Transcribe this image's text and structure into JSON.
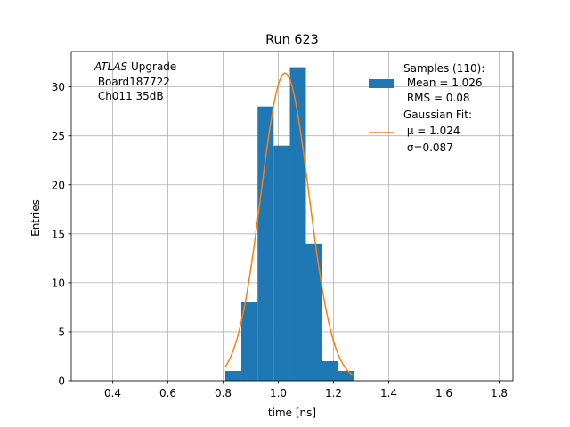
{
  "chart_data": {
    "type": "bar",
    "title": "Run 623",
    "xlabel": "time [ns]",
    "ylabel": "Entries",
    "xlim": [
      0.25,
      1.85
    ],
    "ylim": [
      0,
      33.6
    ],
    "xticks": [
      0.4,
      0.6,
      0.8,
      1.0,
      1.2,
      1.4,
      1.6,
      1.8
    ],
    "xtick_labels": [
      "0.4",
      "0.6",
      "0.8",
      "1.0",
      "1.2",
      "1.4",
      "1.6",
      "1.8"
    ],
    "yticks": [
      0,
      5,
      10,
      15,
      20,
      25,
      30
    ],
    "ytick_labels": [
      "0",
      "5",
      "10",
      "15",
      "20",
      "25",
      "30"
    ],
    "grid": true,
    "legend_position": "top-right",
    "series": [
      {
        "kind": "histogram",
        "color": "#1f77b4",
        "bins": [
          {
            "x0": 0.808,
            "x1": 0.866,
            "count": 1
          },
          {
            "x0": 0.866,
            "x1": 0.925,
            "count": 8
          },
          {
            "x0": 0.925,
            "x1": 0.983,
            "count": 28
          },
          {
            "x0": 0.983,
            "x1": 1.042,
            "count": 24
          },
          {
            "x0": 1.042,
            "x1": 1.1,
            "count": 32
          },
          {
            "x0": 1.1,
            "x1": 1.159,
            "count": 14
          },
          {
            "x0": 1.159,
            "x1": 1.217,
            "count": 2
          },
          {
            "x0": 1.217,
            "x1": 1.276,
            "count": 1
          }
        ],
        "legend_lines": [
          "Samples (110):",
          " Mean = 1.026",
          " RMS = 0.08"
        ]
      },
      {
        "kind": "gaussian-fit",
        "color": "#ff7f0e",
        "mu": 1.024,
        "sigma": 0.087,
        "amplitude": 31.4,
        "x_range": [
          0.808,
          1.276
        ],
        "legend_lines": [
          "Gaussian Fit:",
          " μ = 1.024",
          " σ=0.087"
        ]
      }
    ],
    "annotation": {
      "line1_italic": "ATLAS",
      "line1_rest": " Upgrade",
      "line2": " Board187722",
      "line3": " Ch011 35dB"
    }
  }
}
